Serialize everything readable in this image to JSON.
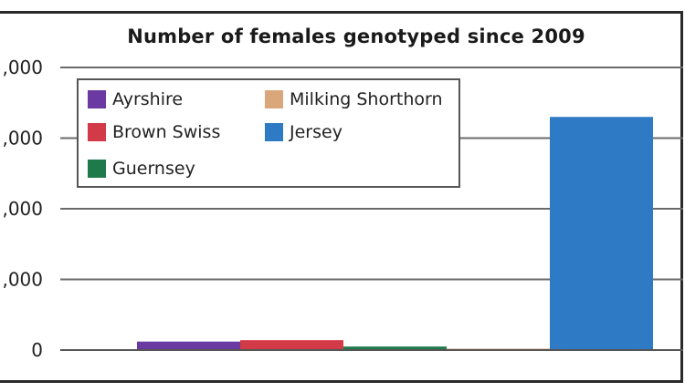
{
  "chart_data": {
    "type": "bar",
    "title": "Number of females genotyped since 2009",
    "xlabel": "",
    "ylabel": "",
    "categories": [
      "Ayrshire",
      "Brown Swiss",
      "Guernsey",
      "Milking Shorthorn",
      "Jersey"
    ],
    "values": [
      0.12,
      0.14,
      0.05,
      0.02,
      3.3
    ],
    "ylim": [
      0,
      4
    ],
    "yticks": [
      0,
      1,
      2,
      3,
      4
    ],
    "ytick_labels": [
      "0",
      ",000",
      ",000",
      ",000",
      ",000"
    ],
    "grid": true,
    "legend_position": "top-left",
    "legend": [
      {
        "name": "Ayrshire",
        "color": "#6a3aa2"
      },
      {
        "name": "Milking Shorthorn",
        "color": "#d9a77a"
      },
      {
        "name": "Brown Swiss",
        "color": "#d23a48"
      },
      {
        "name": "Jersey",
        "color": "#2f7ac4"
      },
      {
        "name": "Guernsey",
        "color": "#1e7a4a"
      }
    ],
    "colors": [
      "#6a3aa2",
      "#d23a48",
      "#1e7a4a",
      "#d9a77a",
      "#2f7ac4"
    ]
  }
}
